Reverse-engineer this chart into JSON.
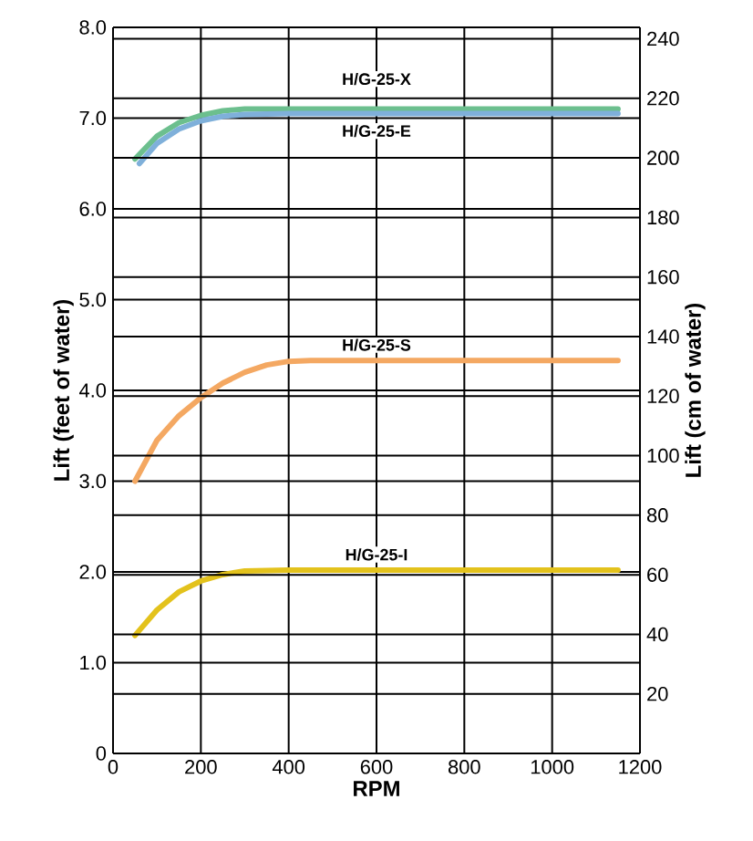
{
  "chart_data": {
    "type": "line",
    "xlabel": "RPM",
    "ylabel": "Lift (feet of water)",
    "y2label": "Lift (cm of water)",
    "xlim": [
      0,
      1200
    ],
    "xticks": [
      0,
      200,
      400,
      600,
      800,
      1000,
      1200
    ],
    "ylim": [
      0,
      8
    ],
    "yticks": [
      0,
      {
        "value": 1,
        "label": "1.0"
      },
      {
        "value": 2,
        "label": "2.0"
      },
      {
        "value": 3,
        "label": "3.0"
      },
      {
        "value": 4,
        "label": "4.0"
      },
      {
        "value": 5,
        "label": "5.0"
      },
      {
        "value": 6,
        "label": "6.0"
      },
      {
        "value": 7,
        "label": "7.0"
      },
      {
        "value": 8,
        "label": "8.0"
      }
    ],
    "y2lim": [
      0,
      243.84
    ],
    "y2ticks": [
      20,
      40,
      60,
      80,
      100,
      120,
      140,
      160,
      180,
      200,
      220,
      240
    ],
    "grid": true,
    "series": [
      {
        "name": "H/G-25-X",
        "color": "#6cbf8e",
        "x": [
          50,
          100,
          150,
          200,
          250,
          300,
          400,
          600,
          800,
          1000,
          1150
        ],
        "values": [
          6.55,
          6.8,
          6.95,
          7.03,
          7.08,
          7.1,
          7.1,
          7.1,
          7.1,
          7.1,
          7.1
        ]
      },
      {
        "name": "H/G-25-E",
        "color": "#7fb0da",
        "x": [
          60,
          100,
          150,
          200,
          250,
          300,
          400,
          600,
          800,
          1000,
          1150
        ],
        "values": [
          6.5,
          6.72,
          6.88,
          6.97,
          7.02,
          7.04,
          7.05,
          7.05,
          7.05,
          7.05,
          7.05
        ]
      },
      {
        "name": "H/G-25-S",
        "color": "#f4a862",
        "x": [
          50,
          100,
          150,
          200,
          250,
          300,
          350,
          400,
          450,
          600,
          800,
          1000,
          1150
        ],
        "values": [
          3.0,
          3.45,
          3.72,
          3.92,
          4.08,
          4.2,
          4.28,
          4.32,
          4.33,
          4.33,
          4.33,
          4.33,
          4.33
        ]
      },
      {
        "name": "H/G-25-I",
        "color": "#e3c21c",
        "x": [
          50,
          100,
          150,
          200,
          250,
          300,
          400,
          600,
          800,
          1000,
          1150
        ],
        "values": [
          1.3,
          1.58,
          1.78,
          1.9,
          1.97,
          2.01,
          2.02,
          2.02,
          2.02,
          2.02,
          2.02
        ]
      }
    ]
  }
}
